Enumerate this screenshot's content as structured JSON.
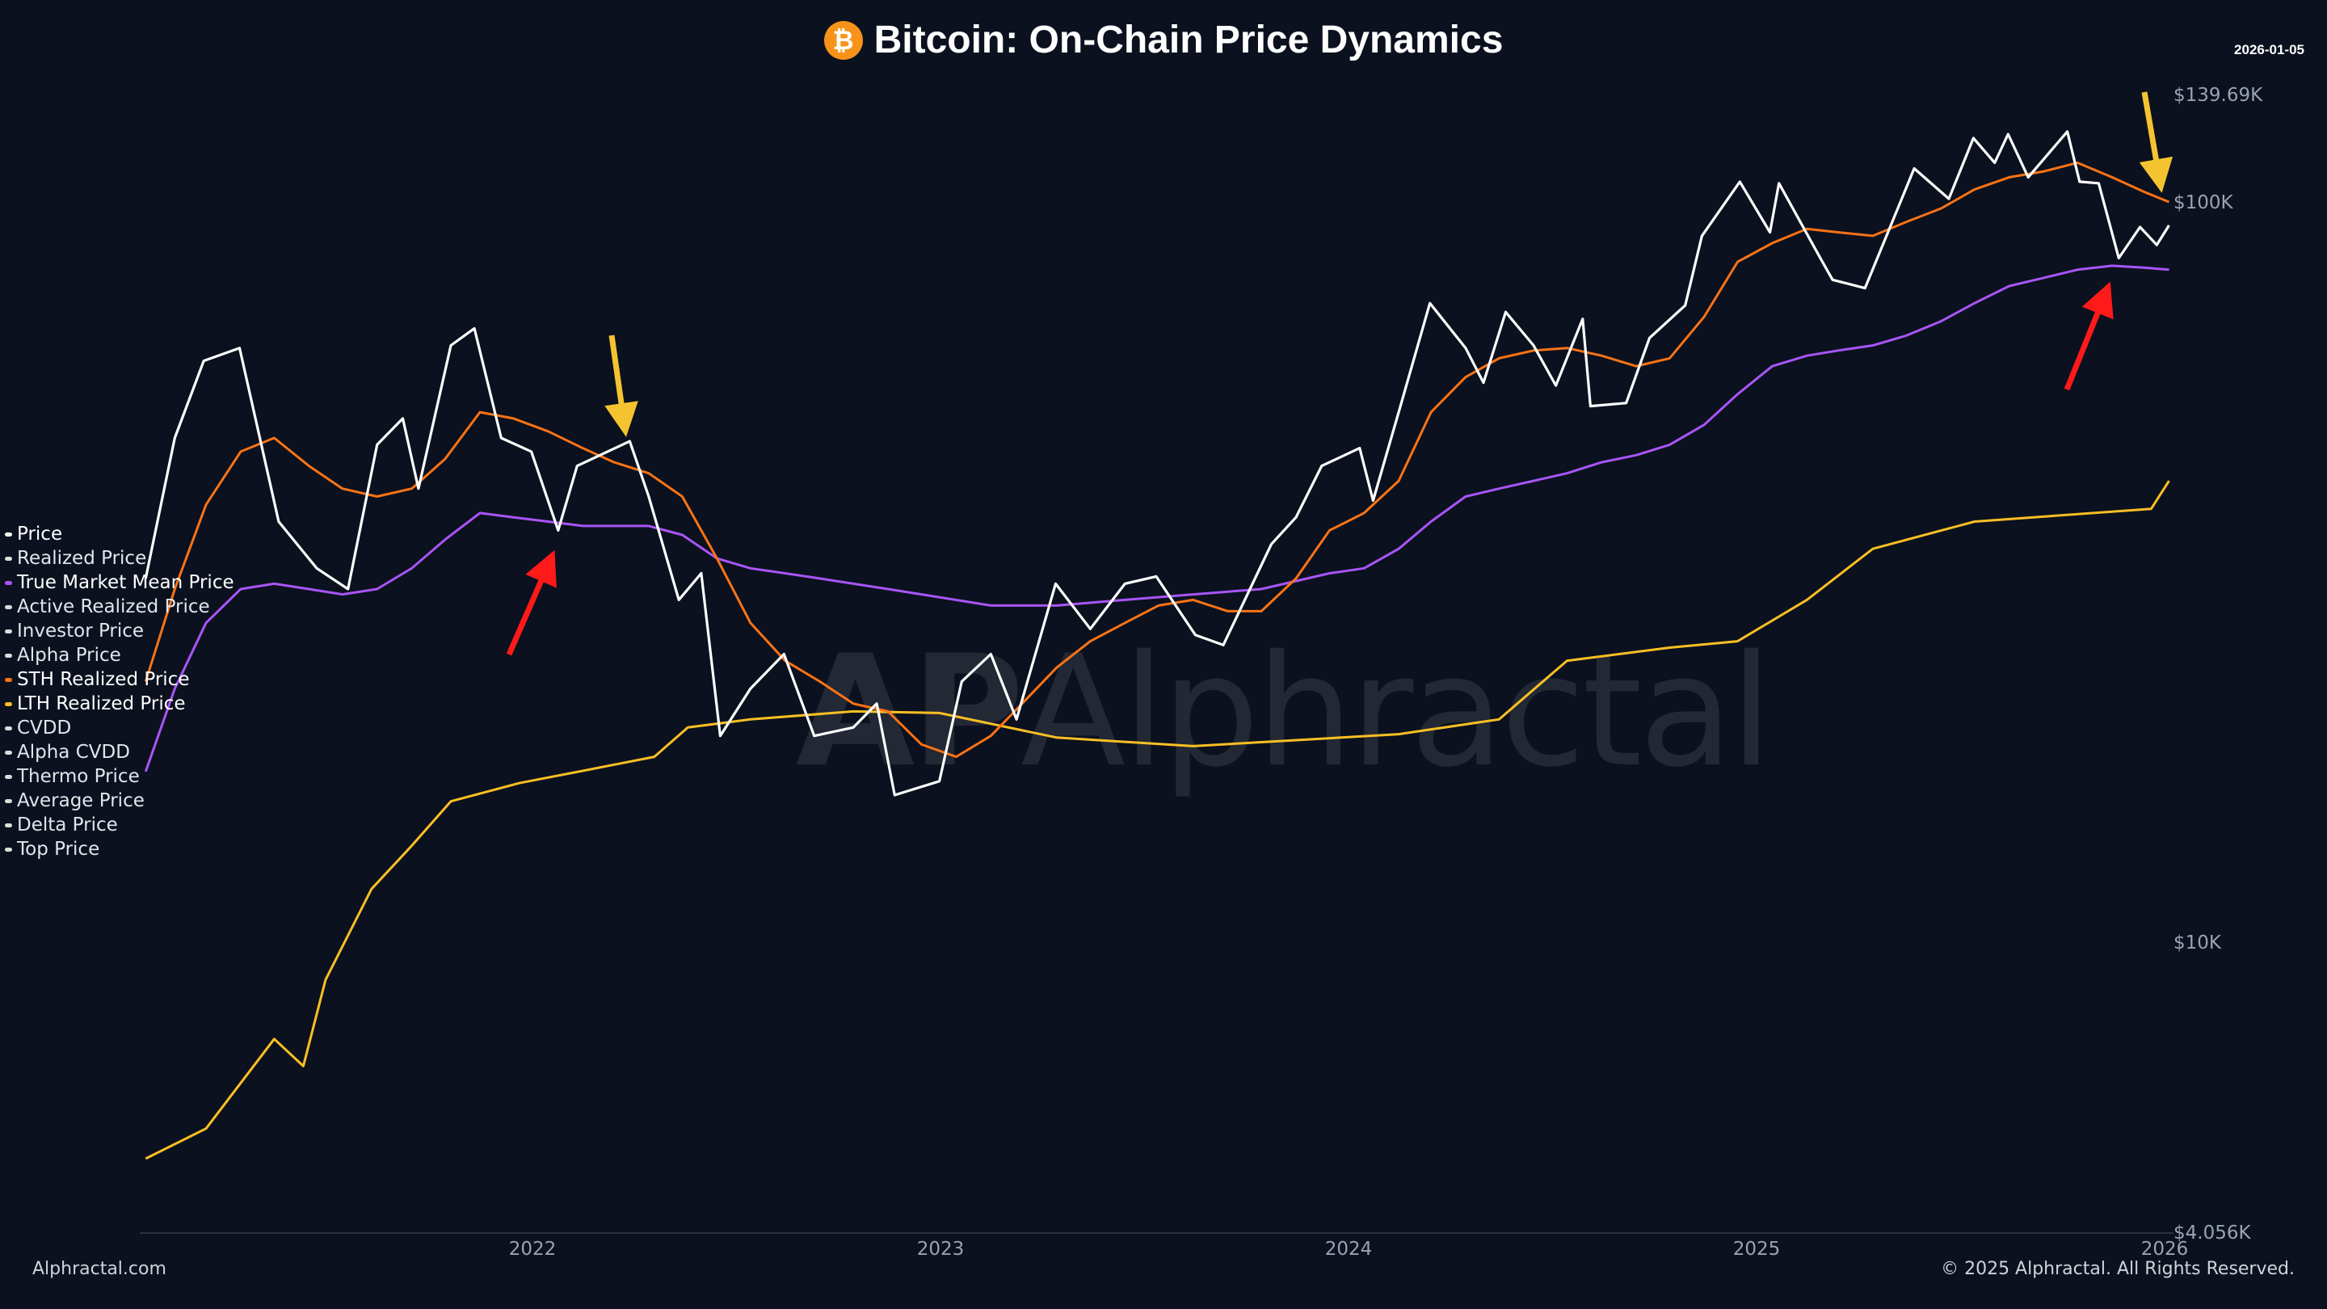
{
  "header": {
    "title": "Bitcoin: On-Chain Price Dynamics",
    "date": "2026-01-05",
    "btc_icon": "bitcoin-icon"
  },
  "footer": {
    "site": "Alphractal.com",
    "copyright": "© 2025 Alphractal. All Rights Reserved."
  },
  "watermark": "Alphractal",
  "legend": [
    {
      "label": "Price",
      "color": "#ffffff",
      "active": true
    },
    {
      "label": "Realized Price",
      "color": "#dcdcdc",
      "active": false
    },
    {
      "label": "True Market Mean Price",
      "color": "#a855f7",
      "active": true
    },
    {
      "label": "Active Realized Price",
      "color": "#dcdcdc",
      "active": false
    },
    {
      "label": "Investor Price",
      "color": "#dcdcdc",
      "active": false
    },
    {
      "label": "Alpha Price",
      "color": "#dcdcdc",
      "active": false
    },
    {
      "label": "STH Realized Price",
      "color": "#f97316",
      "active": true
    },
    {
      "label": "LTH Realized Price",
      "color": "#fbbf24",
      "active": true
    },
    {
      "label": "CVDD",
      "color": "#dcdcdc",
      "active": false
    },
    {
      "label": "Alpha CVDD",
      "color": "#dcdcdc",
      "active": false
    },
    {
      "label": "Thermo Price",
      "color": "#dcdcdc",
      "active": false
    },
    {
      "label": "Average Price",
      "color": "#dcdcdc",
      "active": false
    },
    {
      "label": "Delta Price",
      "color": "#dcdcdc",
      "active": false
    },
    {
      "label": "Top Price",
      "color": "#dcdcdc",
      "active": false
    }
  ],
  "chart_data": {
    "type": "line",
    "title": "Bitcoin: On-Chain Price Dynamics",
    "y_scale": "log",
    "ylim": [
      4056,
      139690
    ],
    "y_ticks": [
      "$139.69K",
      "$100K",
      "$10K",
      "$4.056K"
    ],
    "y_tick_values": [
      139690,
      100000,
      10000,
      4056
    ],
    "x_ticks": [
      "2022",
      "2023",
      "2024",
      "2025",
      "2026"
    ],
    "xlim": [
      "2021-01-20",
      "2026-01-05"
    ],
    "grid": false,
    "legend_position": "left",
    "series": [
      {
        "name": "Price",
        "color": "#ffffff",
        "x": [
          "2021-01-20",
          "2021-02-15",
          "2021-03-13",
          "2021-04-14",
          "2021-05-19",
          "2021-06-22",
          "2021-07-20",
          "2021-08-15",
          "2021-09-07",
          "2021-09-21",
          "2021-10-20",
          "2021-11-10",
          "2021-12-04",
          "2021-12-31",
          "2022-01-24",
          "2022-02-10",
          "2022-03-29",
          "2022-04-15",
          "2022-05-12",
          "2022-06-01",
          "2022-06-18",
          "2022-07-15",
          "2022-08-14",
          "2022-09-10",
          "2022-10-15",
          "2022-11-05",
          "2022-11-21",
          "2022-12-31",
          "2023-01-20",
          "2023-02-15",
          "2023-03-10",
          "2023-04-14",
          "2023-05-15",
          "2023-06-15",
          "2023-07-13",
          "2023-08-17",
          "2023-09-11",
          "2023-10-24",
          "2023-11-15",
          "2023-12-08",
          "2024-01-11",
          "2024-01-23",
          "2024-02-15",
          "2024-03-14",
          "2024-04-15",
          "2024-05-01",
          "2024-05-21",
          "2024-06-15",
          "2024-07-05",
          "2024-07-29",
          "2024-08-05",
          "2024-09-06",
          "2024-09-27",
          "2024-10-29",
          "2024-11-13",
          "2024-12-17",
          "2025-01-13",
          "2025-01-21",
          "2025-02-27",
          "2025-03-10",
          "2025-04-08",
          "2025-05-22",
          "2025-06-22",
          "2025-07-14",
          "2025-08-02",
          "2025-08-14",
          "2025-09-01",
          "2025-10-06",
          "2025-10-17",
          "2025-11-03",
          "2025-11-21",
          "2025-12-10",
          "2025-12-25",
          "2026-01-05"
        ],
        "values": [
          31000,
          48000,
          61000,
          63500,
          37000,
          32000,
          30000,
          47000,
          51000,
          41000,
          64000,
          67500,
          48000,
          46000,
          36000,
          44000,
          47500,
          40000,
          29000,
          31500,
          19000,
          22000,
          24500,
          19000,
          19500,
          21000,
          15800,
          16500,
          22500,
          24500,
          20000,
          30500,
          26500,
          30500,
          31200,
          26000,
          25200,
          34500,
          37500,
          44000,
          46500,
          39500,
          52000,
          73000,
          63500,
          57000,
          71000,
          64000,
          56500,
          69500,
          53000,
          53500,
          65500,
          72500,
          90000,
          106500,
          91000,
          106000,
          84000,
          78500,
          76500,
          111000,
          101000,
          122000,
          113000,
          123500,
          108000,
          124500,
          106500,
          106000,
          84000,
          92500,
          87500,
          93000
        ]
      },
      {
        "name": "STH Realized Price",
        "color": "#f97316",
        "x": [
          "2021-01-20",
          "2021-02-15",
          "2021-03-15",
          "2021-04-15",
          "2021-05-15",
          "2021-06-15",
          "2021-07-15",
          "2021-08-15",
          "2021-09-15",
          "2021-10-15",
          "2021-11-15",
          "2021-12-15",
          "2022-01-15",
          "2022-02-15",
          "2022-03-15",
          "2022-04-15",
          "2022-05-15",
          "2022-06-15",
          "2022-07-15",
          "2022-08-15",
          "2022-09-15",
          "2022-10-15",
          "2022-11-15",
          "2022-12-15",
          "2023-01-15",
          "2023-02-15",
          "2023-03-15",
          "2023-04-15",
          "2023-05-15",
          "2023-06-15",
          "2023-07-15",
          "2023-08-15",
          "2023-09-15",
          "2023-10-15",
          "2023-11-15",
          "2023-12-15",
          "2024-01-15",
          "2024-02-15",
          "2024-03-15",
          "2024-04-15",
          "2024-05-15",
          "2024-06-15",
          "2024-07-15",
          "2024-08-15",
          "2024-09-15",
          "2024-10-15",
          "2024-11-15",
          "2024-12-15",
          "2025-01-15",
          "2025-02-15",
          "2025-03-15",
          "2025-04-15",
          "2025-05-15",
          "2025-06-15",
          "2025-07-15",
          "2025-08-15",
          "2025-09-15",
          "2025-10-15",
          "2025-11-15",
          "2025-12-15",
          "2026-01-05"
        ],
        "values": [
          22500,
          30000,
          39000,
          46000,
          48000,
          44000,
          41000,
          40000,
          41000,
          45000,
          52000,
          51000,
          49000,
          46500,
          44500,
          43000,
          40000,
          33000,
          27000,
          24000,
          22500,
          21000,
          20500,
          18500,
          17800,
          19000,
          21000,
          23500,
          25500,
          27000,
          28500,
          29000,
          28000,
          28000,
          31000,
          36000,
          38000,
          42000,
          52000,
          58000,
          61500,
          63000,
          63500,
          62000,
          60000,
          61500,
          70000,
          83000,
          88000,
          92000,
          91000,
          90000,
          94000,
          98000,
          104000,
          108000,
          110000,
          113000,
          108000,
          103000,
          100000
        ]
      },
      {
        "name": "True Market Mean Price",
        "color": "#a855f7",
        "x": [
          "2021-01-20",
          "2021-02-15",
          "2021-03-15",
          "2021-04-15",
          "2021-05-15",
          "2021-06-15",
          "2021-07-15",
          "2021-08-15",
          "2021-09-15",
          "2021-10-15",
          "2021-11-15",
          "2021-12-15",
          "2022-01-15",
          "2022-02-15",
          "2022-03-15",
          "2022-04-15",
          "2022-05-15",
          "2022-06-15",
          "2022-07-15",
          "2022-08-15",
          "2022-09-15",
          "2022-10-15",
          "2022-11-15",
          "2022-12-15",
          "2023-02-15",
          "2023-04-15",
          "2023-06-15",
          "2023-08-15",
          "2023-10-15",
          "2023-12-15",
          "2024-01-15",
          "2024-02-15",
          "2024-03-15",
          "2024-04-15",
          "2024-05-15",
          "2024-06-15",
          "2024-07-15",
          "2024-08-15",
          "2024-09-15",
          "2024-10-15",
          "2024-11-15",
          "2024-12-15",
          "2025-01-15",
          "2025-02-15",
          "2025-03-15",
          "2025-04-15",
          "2025-05-15",
          "2025-06-15",
          "2025-07-15",
          "2025-08-15",
          "2025-09-15",
          "2025-10-15",
          "2025-11-15",
          "2025-12-15",
          "2026-01-05"
        ],
        "values": [
          17000,
          22000,
          27000,
          30000,
          30500,
          30000,
          29500,
          30000,
          32000,
          35000,
          38000,
          37500,
          37000,
          36500,
          36500,
          36500,
          35500,
          33000,
          32000,
          31500,
          31000,
          30500,
          30000,
          29500,
          28500,
          28500,
          29000,
          29500,
          30000,
          31500,
          32000,
          34000,
          37000,
          40000,
          41000,
          42000,
          43000,
          44500,
          45500,
          47000,
          50000,
          55000,
          60000,
          62000,
          63000,
          64000,
          66000,
          69000,
          73000,
          77000,
          79000,
          81000,
          82000,
          81500,
          81000
        ]
      },
      {
        "name": "LTH Realized Price",
        "color": "#fbbf24",
        "x": [
          "2021-01-20",
          "2021-03-15",
          "2021-05-15",
          "2021-06-10",
          "2021-06-30",
          "2021-08-10",
          "2021-09-15",
          "2021-10-20",
          "2021-12-20",
          "2022-02-20",
          "2022-04-20",
          "2022-05-20",
          "2022-07-15",
          "2022-10-15",
          "2022-12-31",
          "2023-04-15",
          "2023-08-15",
          "2024-02-15",
          "2024-05-15",
          "2024-07-15",
          "2024-10-15",
          "2024-12-15",
          "2025-02-15",
          "2025-04-15",
          "2025-07-15",
          "2025-12-20",
          "2026-01-05"
        ],
        "values": [
          5100,
          5600,
          7400,
          6800,
          8900,
          11800,
          13500,
          15500,
          16400,
          17100,
          17800,
          19500,
          20000,
          20500,
          20400,
          18900,
          18400,
          19100,
          20000,
          24000,
          25000,
          25500,
          29000,
          34000,
          37000,
          38500,
          42000
        ]
      }
    ]
  }
}
